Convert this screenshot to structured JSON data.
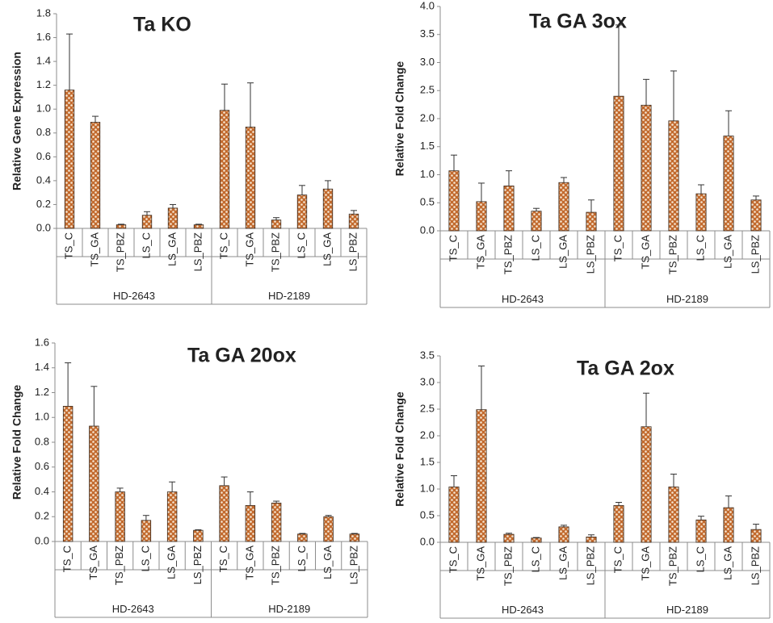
{
  "chart_data": [
    {
      "type": "bar",
      "title": "Ta KO",
      "ylabel": "Relative Gene Expression",
      "xlabel": "",
      "ylim": [
        0,
        1.8
      ],
      "yticks": [
        "0.0",
        "0.2",
        "0.4",
        "0.6",
        "0.8",
        "1.0",
        "1.2",
        "1.4",
        "1.6",
        "1.8"
      ],
      "categories": [
        "TS_C",
        "TS_GA",
        "TS_PBZ",
        "LS_C",
        "LS_GA",
        "LS_PBZ",
        "TS_C",
        "TS_GA",
        "TS_PBZ",
        "LS_C",
        "LS_GA",
        "LS_PBZ"
      ],
      "groups": [
        "HD-2643",
        "HD-2189"
      ],
      "values": [
        1.16,
        0.89,
        0.03,
        0.11,
        0.17,
        0.03,
        0.99,
        0.85,
        0.07,
        0.28,
        0.33,
        0.12
      ],
      "errors": [
        0.47,
        0.05,
        0.005,
        0.03,
        0.03,
        0.005,
        0.22,
        0.37,
        0.02,
        0.08,
        0.07,
        0.03
      ],
      "grid": false,
      "legend": "none"
    },
    {
      "type": "bar",
      "title": "Ta GA 3ox",
      "ylabel": "Relative Fold Change",
      "xlabel": "",
      "ylim": [
        0,
        4.0
      ],
      "yticks": [
        "0.0",
        "0.5",
        "1.0",
        "1.5",
        "2.0",
        "2.5",
        "3.0",
        "3.5",
        "4.0"
      ],
      "categories": [
        "TS_C",
        "TS_GA",
        "TS_PBZ",
        "LS_C",
        "LS_GA",
        "LS_PBZ",
        "TS_C",
        "TS_GA",
        "TS_PBZ",
        "LS_C",
        "LS_GA",
        "LS_PBZ"
      ],
      "groups": [
        "HD-2643",
        "HD-2189"
      ],
      "values": [
        1.07,
        0.52,
        0.8,
        0.35,
        0.86,
        0.33,
        2.4,
        2.24,
        1.96,
        0.66,
        1.69,
        0.55
      ],
      "errors": [
        0.28,
        0.33,
        0.27,
        0.05,
        0.09,
        0.22,
        1.27,
        0.46,
        0.89,
        0.16,
        0.45,
        0.07
      ],
      "grid": false,
      "legend": "none"
    },
    {
      "type": "bar",
      "title": "Ta GA 20ox",
      "ylabel": "Relative Fold Change",
      "xlabel": "",
      "ylim": [
        0,
        1.6
      ],
      "yticks": [
        "0.0",
        "0.2",
        "0.4",
        "0.6",
        "0.8",
        "1.0",
        "1.2",
        "1.4",
        "1.6"
      ],
      "categories": [
        "TS_C",
        "TS_GA",
        "TS_PBZ",
        "LS_C",
        "LS_GA",
        "LS_PBZ",
        "TS_C",
        "TS_GA",
        "TS_PBZ",
        "LS_C",
        "LS_GA",
        "LS_PBZ"
      ],
      "groups": [
        "HD-2643",
        "HD-2189"
      ],
      "values": [
        1.09,
        0.93,
        0.4,
        0.17,
        0.4,
        0.09,
        0.45,
        0.29,
        0.31,
        0.06,
        0.2,
        0.06
      ],
      "errors": [
        0.35,
        0.32,
        0.03,
        0.04,
        0.08,
        0.005,
        0.07,
        0.11,
        0.015,
        0.005,
        0.01,
        0.005
      ],
      "grid": false,
      "legend": "none"
    },
    {
      "type": "bar",
      "title": "Ta GA 2ox",
      "ylabel": "Relative Fold Change",
      "xlabel": "",
      "ylim": [
        0,
        3.5
      ],
      "yticks": [
        "0.0",
        "0.5",
        "1.0",
        "1.5",
        "2.0",
        "2.5",
        "3.0",
        "3.5"
      ],
      "categories": [
        "TS_C",
        "TS_GA",
        "TS_PBZ",
        "LS_C",
        "LS_GA",
        "LS_PBZ",
        "TS_C",
        "TS_GA",
        "TS_PBZ",
        "LS_C",
        "LS_GA",
        "LS_PBZ"
      ],
      "groups": [
        "HD-2643",
        "HD-2189"
      ],
      "values": [
        1.04,
        2.49,
        0.15,
        0.08,
        0.29,
        0.1,
        0.69,
        2.17,
        1.04,
        0.42,
        0.65,
        0.24
      ],
      "errors": [
        0.21,
        0.82,
        0.02,
        0.01,
        0.03,
        0.04,
        0.06,
        0.63,
        0.24,
        0.07,
        0.22,
        0.1
      ],
      "grid": false,
      "legend": "none"
    }
  ]
}
